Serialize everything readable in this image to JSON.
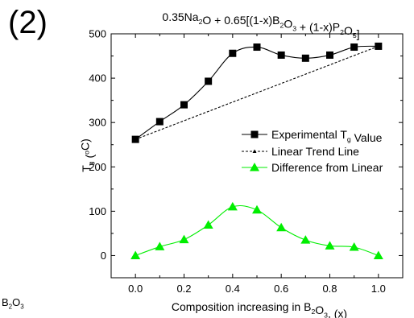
{
  "panel_label": "(2)",
  "stray_label": {
    "prefix": "B",
    "sub1": "2",
    "mid": "O",
    "sub2": "3"
  },
  "chart_data": {
    "type": "line",
    "title": {
      "parts": [
        {
          "t": "0.35Na"
        },
        {
          "t": "2",
          "sub": true
        },
        {
          "t": "O + 0.65[(1-x)B"
        },
        {
          "t": "2",
          "sub": true
        },
        {
          "t": "O"
        },
        {
          "t": "3",
          "sub": true
        },
        {
          "t": " + (1-x)P"
        },
        {
          "t": "2",
          "sub": true
        },
        {
          "t": "O"
        },
        {
          "t": "5",
          "sub": true
        },
        {
          "t": "]"
        }
      ]
    },
    "xlabel": {
      "parts": [
        {
          "t": "Composition increasing in B"
        },
        {
          "t": "2",
          "sub": true
        },
        {
          "t": "O"
        },
        {
          "t": "3",
          "sub": true
        },
        {
          "t": ", (x)"
        }
      ]
    },
    "ylabel": {
      "parts": [
        {
          "t": "T"
        },
        {
          "t": "g",
          "sub": true
        },
        {
          "t": " ("
        },
        {
          "t": "o",
          "sup": true
        },
        {
          "t": "C)"
        }
      ]
    },
    "xlim": [
      -0.1,
      1.1
    ],
    "ylim": [
      -50,
      500
    ],
    "xticks": [
      "0.0",
      "0.2",
      "0.4",
      "0.6",
      "0.8",
      "1.0"
    ],
    "yticks": [
      "0",
      "100",
      "200",
      "300",
      "400",
      "500"
    ],
    "grid": false,
    "legend_position": "center-right",
    "series": [
      {
        "name_parts": [
          {
            "t": "Experimental T"
          },
          {
            "t": "g",
            "sub": true
          },
          {
            "t": " Value"
          }
        ],
        "marker": "square",
        "line": "solid",
        "color": "#000000",
        "x": [
          0.0,
          0.1,
          0.2,
          0.3,
          0.4,
          0.5,
          0.6,
          0.7,
          0.8,
          0.9,
          1.0
        ],
        "y": [
          262,
          302,
          340,
          393,
          456,
          470,
          452,
          445,
          452,
          470,
          472
        ]
      },
      {
        "name_parts": [
          {
            "t": "Linear Trend Line"
          }
        ],
        "marker": "small-triangle",
        "line": "dashed",
        "color": "#000000",
        "x": [
          0.0,
          1.0
        ],
        "y": [
          262,
          472
        ]
      },
      {
        "name_parts": [
          {
            "t": "Difference from Linear"
          }
        ],
        "marker": "triangle",
        "line": "solid",
        "color": "#00ee00",
        "x": [
          0.0,
          0.1,
          0.2,
          0.3,
          0.4,
          0.5,
          0.6,
          0.7,
          0.8,
          0.9,
          1.0
        ],
        "y": [
          0,
          20,
          36,
          69,
          110,
          103,
          63,
          35,
          22,
          19,
          0
        ]
      }
    ]
  }
}
